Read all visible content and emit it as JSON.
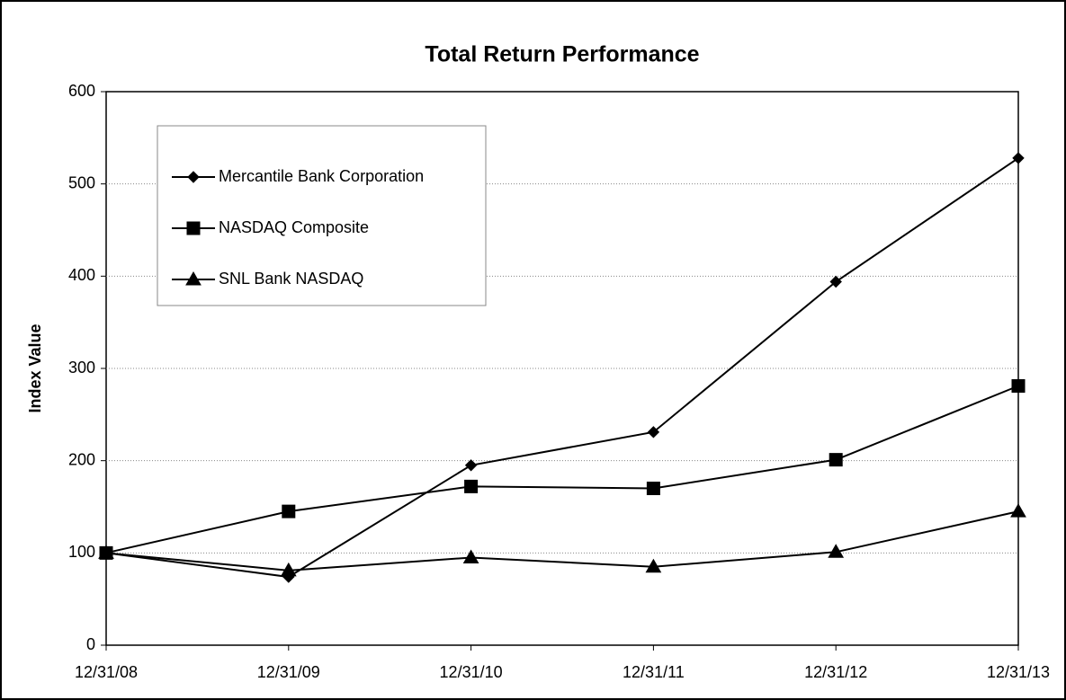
{
  "chart_data": {
    "type": "line",
    "title": "Total Return Performance",
    "y_label": "Index Value",
    "categories": [
      "12/31/08",
      "12/31/09",
      "12/31/10",
      "12/31/11",
      "12/31/12",
      "12/31/13"
    ],
    "series": [
      {
        "name": "Mercantile Bank Corporation",
        "color": "#000000",
        "marker": "diamond",
        "values": [
          100,
          74,
          195,
          231,
          394,
          528
        ]
      },
      {
        "name": "NASDAQ Composite",
        "color": "#000000",
        "marker": "square",
        "values": [
          100,
          145,
          172,
          170,
          201,
          281
        ]
      },
      {
        "name": "SNL Bank NASDAQ",
        "color": "#000000",
        "marker": "triangle",
        "values": [
          100,
          81,
          95,
          85,
          101,
          145
        ]
      }
    ],
    "ylim": [
      0,
      600
    ],
    "yticks": [
      0,
      100,
      200,
      300,
      400,
      500,
      600
    ],
    "grid": true,
    "legend": "upper left"
  }
}
